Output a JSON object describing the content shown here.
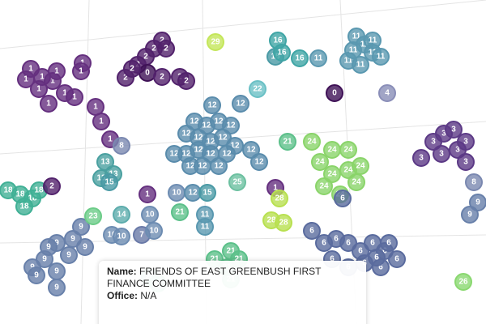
{
  "nodes": [
    "1",
    "1",
    "1",
    "1",
    "1",
    "1",
    "1",
    "1",
    "1",
    "1",
    "1",
    "1",
    "1",
    "8",
    "1",
    "2",
    "2",
    "2",
    "2",
    "2",
    "2",
    "0",
    "2",
    "2",
    "2",
    "2",
    "29",
    "16",
    "15",
    "16",
    "16",
    "11",
    "11",
    "11",
    "11",
    "11",
    "11",
    "11",
    "11",
    "11",
    "0",
    "4",
    "22",
    "12",
    "12",
    "12",
    "12",
    "12",
    "12",
    "12",
    "12",
    "12",
    "12",
    "12",
    "12",
    "12",
    "12",
    "12",
    "12",
    "12",
    "12",
    "12",
    "12",
    "12",
    "13",
    "13",
    "13",
    "15",
    "18",
    "18",
    "18",
    "18",
    "18",
    "2",
    "1",
    "10",
    "12",
    "15",
    "25",
    "1",
    "28",
    "21",
    "24",
    "24",
    "24",
    "24",
    "24",
    "24",
    "24",
    "24",
    "24",
    "24",
    "6",
    "3",
    "3",
    "3",
    "3",
    "3",
    "3",
    "3",
    "3",
    "8",
    "9",
    "9",
    "9",
    "9",
    "9",
    "9",
    "9",
    "9",
    "9",
    "9",
    "9",
    "9",
    "9",
    "23",
    "14",
    "10",
    "10",
    "7",
    "10",
    "10",
    "21",
    "11",
    "11",
    "28",
    "28",
    "21",
    "21",
    "21",
    "21",
    "21",
    "20",
    "19",
    "6",
    "6",
    "6",
    "6",
    "6",
    "6",
    "6",
    "6",
    "6",
    "6",
    "6",
    "6",
    "6",
    "6",
    "26"
  ],
  "palette": {
    "0": "#3f1156",
    "1": "#65307f",
    "2": "#52226c",
    "3": "#5c3a86",
    "4": "#8a8eb8",
    "6": "#5a6b9e",
    "7": "#6a7aa8",
    "8": "#7a88b0",
    "9": "#6880aa",
    "10": "#6d8cb2",
    "11": "#5a98b0",
    "12": "#5a8cac",
    "13": "#4aa0a0",
    "14": "#5cacac",
    "15": "#4a9aa5",
    "16": "#3fa5a5",
    "18": "#40b095",
    "19": "#50b890",
    "20": "#50b890",
    "21": "#5cc08a",
    "22": "#6ac0c5",
    "23": "#6ccc88",
    "24": "#8ad46a",
    "25": "#6cc0a0",
    "26": "#8ad870",
    "28": "#b8e050",
    "29": "#c4e65a"
  },
  "tooltip": {
    "name_label": "Name:",
    "name": "FRIENDS OF EAST GREENBUSH FIRST FINANCE COMMITTEE",
    "office_label": "Office:",
    "office": "N/A"
  }
}
